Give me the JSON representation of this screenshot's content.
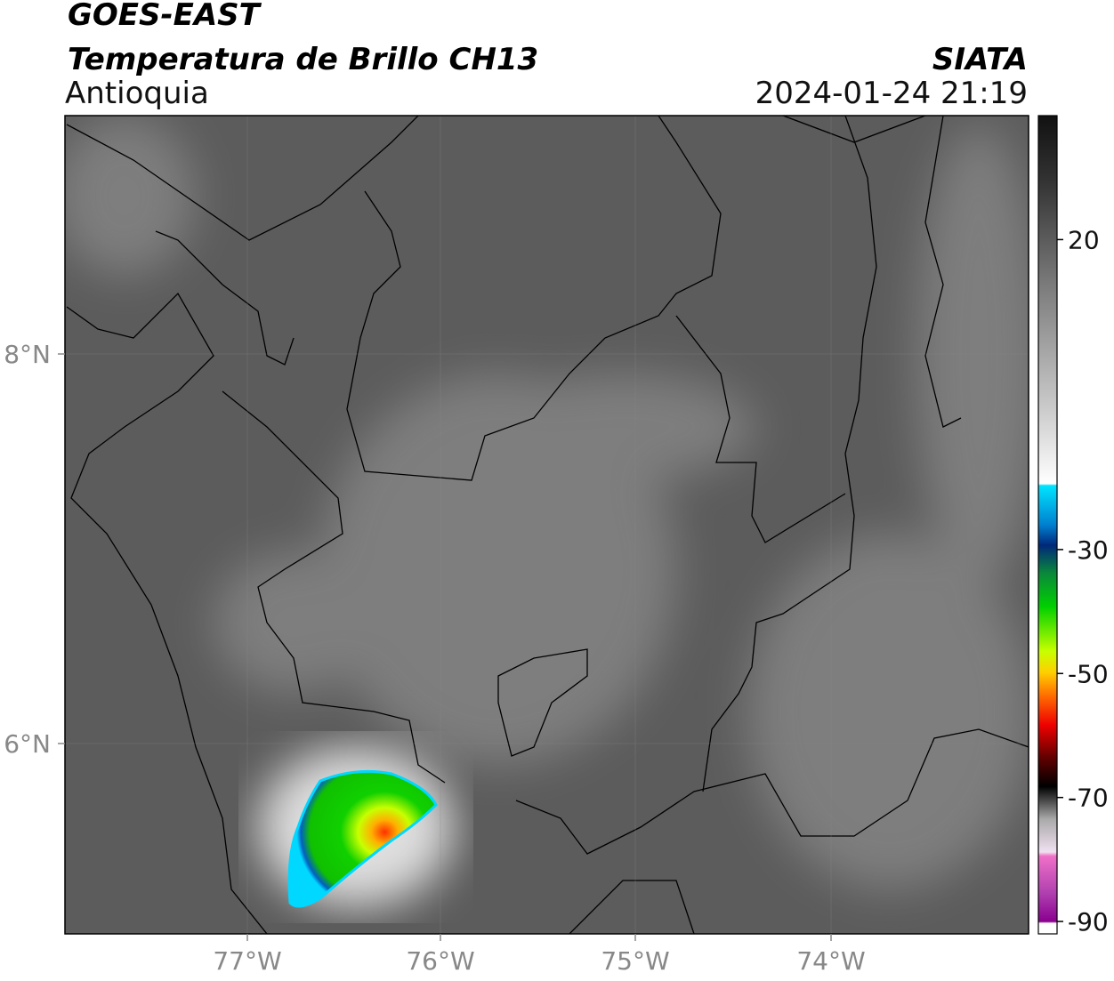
{
  "header": {
    "title": "GOES-EAST",
    "subtitle": "Temperatura de Brillo CH13",
    "region": "Antioquia",
    "source": "SIATA",
    "timestamp": "2024-01-24 21:19"
  },
  "map": {
    "lat_labels": [
      "8°N",
      "6°N"
    ],
    "lon_labels": [
      "77°W",
      "76°W",
      "75°W",
      "74°W"
    ]
  },
  "colorbar": {
    "range": [
      -92,
      40
    ],
    "ticks": [
      20,
      -30,
      -50,
      -70,
      -90
    ]
  }
}
